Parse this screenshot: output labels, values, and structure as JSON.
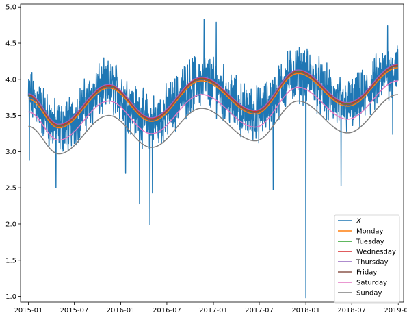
{
  "chart_data": {
    "type": "line",
    "x_range": [
      "2014-12-01",
      "2019-01-22"
    ],
    "ylim": [
      0.92,
      5.04
    ],
    "x_ticks": [
      "2015-01",
      "2015-07",
      "2016-01",
      "2016-07",
      "2017-01",
      "2017-07",
      "2018-01",
      "2018-07",
      "2019-01"
    ],
    "y_ticks": [
      "1.0",
      "1.5",
      "2.0",
      "2.5",
      "3.0",
      "3.5",
      "4.0",
      "4.5",
      "5.0"
    ],
    "grid": false,
    "legend_position": "lower right",
    "observed": {
      "name": "X",
      "color": "#1f77b4",
      "start_date": "2015-01-01",
      "end_date": "2018-12-31",
      "spikes": [
        {
          "date": "2015-01-05",
          "value": 2.88
        },
        {
          "date": "2015-04-20",
          "value": 2.5
        },
        {
          "date": "2016-01-20",
          "value": 2.7
        },
        {
          "date": "2016-03-15",
          "value": 2.28
        },
        {
          "date": "2016-04-25",
          "value": 1.99
        },
        {
          "date": "2016-05-05",
          "value": 2.43
        },
        {
          "date": "2016-11-25",
          "value": 4.83
        },
        {
          "date": "2017-01-12",
          "value": 4.79
        },
        {
          "date": "2017-08-25",
          "value": 2.47
        },
        {
          "date": "2018-01-01",
          "value": 0.98
        },
        {
          "date": "2018-05-20",
          "value": 2.53
        },
        {
          "date": "2018-11-20",
          "value": 4.74
        },
        {
          "date": "2018-12-10",
          "value": 3.24
        }
      ]
    },
    "weekday_series": [
      {
        "name": "Monday",
        "color": "#ff7f0e",
        "values": [
          {
            "date": "2015-01-01",
            "value": 3.73
          },
          {
            "date": "2015-05-01",
            "value": 3.33
          },
          {
            "date": "2015-11-15",
            "value": 3.88
          },
          {
            "date": "2016-05-01",
            "value": 3.42
          },
          {
            "date": "2016-11-15",
            "value": 3.98
          },
          {
            "date": "2017-06-15",
            "value": 3.52
          },
          {
            "date": "2017-12-01",
            "value": 4.08
          },
          {
            "date": "2018-06-15",
            "value": 3.63
          },
          {
            "date": "2018-12-31",
            "value": 4.16
          }
        ]
      },
      {
        "name": "Tuesday",
        "color": "#2ca02c",
        "values": [
          {
            "date": "2015-01-01",
            "value": 3.78
          },
          {
            "date": "2015-05-01",
            "value": 3.36
          },
          {
            "date": "2015-11-15",
            "value": 3.91
          },
          {
            "date": "2016-05-01",
            "value": 3.45
          },
          {
            "date": "2016-11-15",
            "value": 4.01
          },
          {
            "date": "2017-06-15",
            "value": 3.55
          },
          {
            "date": "2017-12-01",
            "value": 4.11
          },
          {
            "date": "2018-06-15",
            "value": 3.66
          },
          {
            "date": "2018-12-31",
            "value": 4.19
          }
        ]
      },
      {
        "name": "Wednesday",
        "color": "#d62728",
        "values": [
          {
            "date": "2015-01-01",
            "value": 3.79
          },
          {
            "date": "2015-05-01",
            "value": 3.37
          },
          {
            "date": "2015-11-15",
            "value": 3.92
          },
          {
            "date": "2016-05-01",
            "value": 3.46
          },
          {
            "date": "2016-11-15",
            "value": 4.02
          },
          {
            "date": "2017-06-15",
            "value": 3.56
          },
          {
            "date": "2017-12-01",
            "value": 4.12
          },
          {
            "date": "2018-06-15",
            "value": 3.67
          },
          {
            "date": "2018-12-31",
            "value": 4.2
          }
        ]
      },
      {
        "name": "Thursday",
        "color": "#9467bd",
        "values": [
          {
            "date": "2015-01-01",
            "value": 3.8
          },
          {
            "date": "2015-05-01",
            "value": 3.38
          },
          {
            "date": "2015-11-15",
            "value": 3.93
          },
          {
            "date": "2016-05-01",
            "value": 3.47
          },
          {
            "date": "2016-11-15",
            "value": 4.03
          },
          {
            "date": "2017-06-15",
            "value": 3.57
          },
          {
            "date": "2017-12-01",
            "value": 4.13
          },
          {
            "date": "2018-06-15",
            "value": 3.68
          },
          {
            "date": "2018-12-31",
            "value": 4.21
          }
        ]
      },
      {
        "name": "Friday",
        "color": "#8c564b",
        "values": [
          {
            "date": "2015-01-01",
            "value": 3.77
          },
          {
            "date": "2015-05-01",
            "value": 3.35
          },
          {
            "date": "2015-11-15",
            "value": 3.9
          },
          {
            "date": "2016-05-01",
            "value": 3.44
          },
          {
            "date": "2016-11-15",
            "value": 4.0
          },
          {
            "date": "2017-06-15",
            "value": 3.54
          },
          {
            "date": "2017-12-01",
            "value": 4.1
          },
          {
            "date": "2018-06-15",
            "value": 3.65
          },
          {
            "date": "2018-12-31",
            "value": 4.18
          }
        ]
      },
      {
        "name": "Saturday",
        "color": "#e377c2",
        "values": [
          {
            "date": "2015-01-01",
            "value": 3.55
          },
          {
            "date": "2015-05-01",
            "value": 3.16
          },
          {
            "date": "2015-11-15",
            "value": 3.7
          },
          {
            "date": "2016-05-01",
            "value": 3.25
          },
          {
            "date": "2016-11-15",
            "value": 3.79
          },
          {
            "date": "2017-06-15",
            "value": 3.34
          },
          {
            "date": "2017-12-01",
            "value": 3.89
          },
          {
            "date": "2018-06-15",
            "value": 3.45
          },
          {
            "date": "2018-12-31",
            "value": 3.98
          }
        ]
      },
      {
        "name": "Sunday",
        "color": "#7f7f7f",
        "values": [
          {
            "date": "2015-01-01",
            "value": 3.35
          },
          {
            "date": "2015-05-01",
            "value": 2.97
          },
          {
            "date": "2015-11-15",
            "value": 3.5
          },
          {
            "date": "2016-05-01",
            "value": 3.06
          },
          {
            "date": "2016-11-15",
            "value": 3.6
          },
          {
            "date": "2017-06-15",
            "value": 3.15
          },
          {
            "date": "2017-12-01",
            "value": 3.7
          },
          {
            "date": "2018-06-15",
            "value": 3.26
          },
          {
            "date": "2018-12-31",
            "value": 3.79
          }
        ]
      }
    ]
  }
}
